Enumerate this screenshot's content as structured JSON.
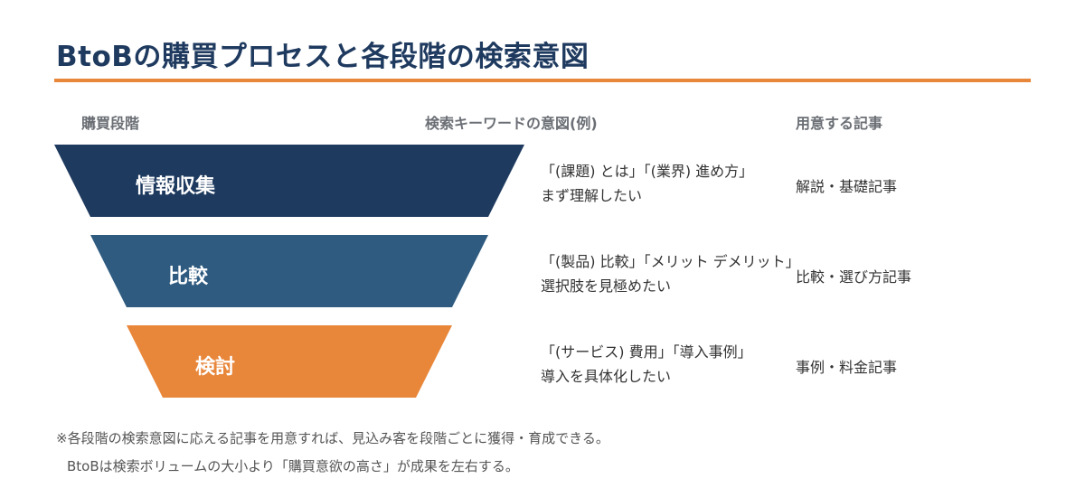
{
  "title": "BtoBの購買プロセスと各段階の検索意図",
  "colors": {
    "title": "#1f3a5f",
    "accent": "#e8863a"
  },
  "columns": {
    "stage": "購買段階",
    "intent": "検索キーワードの意図(例)",
    "article": "用意する記事"
  },
  "stages": [
    {
      "label": "情報収集",
      "color": "#1e3a5f",
      "intent_line1": "「(課題) とは」「(業界) 進め方」",
      "intent_line2": "まず理解したい",
      "article": "解説・基礎記事"
    },
    {
      "label": "比較",
      "color": "#2f5b80",
      "intent_line1": "「(製品) 比較」「メリット デメリット」",
      "intent_line2": "選択肢を見極めたい",
      "article": "比較・選び方記事"
    },
    {
      "label": "検討",
      "color": "#e8863a",
      "intent_line1": "「(サービス) 費用」「導入事例」",
      "intent_line2": "導入を具体化したい",
      "article": "事例・料金記事"
    }
  ],
  "notes": {
    "line1": "※各段階の検索意図に応える記事を用意すれば、見込み客を段階ごとに獲得・育成できる。",
    "line2": "BtoBは検索ボリュームの大小より「購買意欲の高さ」が成果を左右する。"
  }
}
